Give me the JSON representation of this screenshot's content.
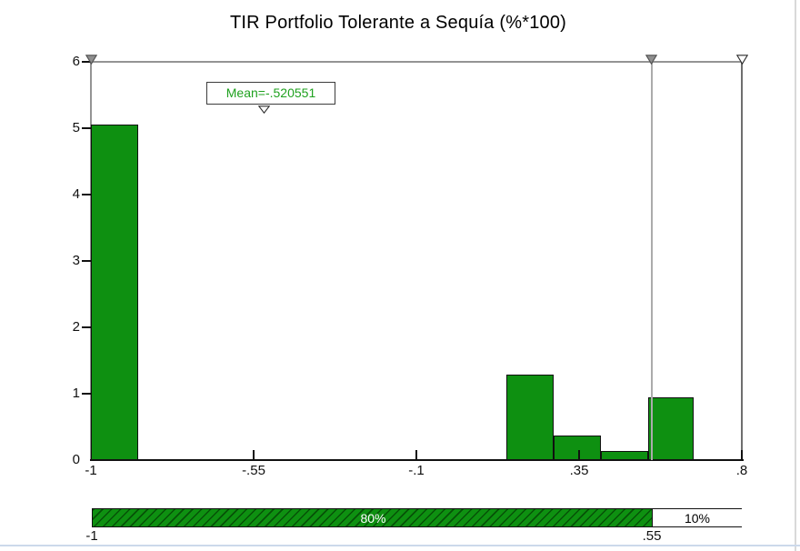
{
  "title": "TIR Portfolio Tolerante a Sequía (%*100)",
  "mean_annotation": {
    "label": "Mean=-.520551",
    "x": -0.520551
  },
  "chart_data": {
    "type": "bar",
    "subtype": "histogram",
    "title": "TIR Portfolio Tolerante a Sequía (%*100)",
    "xlabel": "",
    "ylabel": "",
    "x_axis": {
      "min": -1,
      "max": 0.8,
      "ticks": [
        {
          "value": -1,
          "label": "-1"
        },
        {
          "value": -0.55,
          "label": "-.55"
        },
        {
          "value": -0.1,
          "label": "-.1"
        },
        {
          "value": 0.35,
          "label": ".35"
        },
        {
          "value": 0.8,
          "label": ".8"
        }
      ]
    },
    "y_axis": {
      "min": 0,
      "max": 6,
      "ticks": [
        {
          "value": 0,
          "label": "0"
        },
        {
          "value": 1,
          "label": "1"
        },
        {
          "value": 2,
          "label": "2"
        },
        {
          "value": 3,
          "label": "3"
        },
        {
          "value": 4,
          "label": "4"
        },
        {
          "value": 5,
          "label": "5"
        },
        {
          "value": 6,
          "label": "6"
        }
      ]
    },
    "bins": [
      {
        "x0": -1.0,
        "x1": -0.87,
        "height": 5.06
      },
      {
        "x0": 0.15,
        "x1": 0.28,
        "height": 1.29
      },
      {
        "x0": 0.28,
        "x1": 0.41,
        "height": 0.37
      },
      {
        "x0": 0.41,
        "x1": 0.54,
        "height": 0.14
      },
      {
        "x0": 0.54,
        "x1": 0.665,
        "height": 0.95
      }
    ],
    "mean": -0.520551,
    "delimiter_line_x": 0.55,
    "delimiter_markers": [
      {
        "x": -1,
        "style": "filled",
        "name": "left-delimiter-handle"
      },
      {
        "x": 0.55,
        "style": "filled",
        "name": "right-delimiter-handle"
      },
      {
        "x": 0.8,
        "style": "open",
        "name": "end-delimiter-handle"
      }
    ],
    "legend_position": "none",
    "grid": false,
    "colors": {
      "bar_fill": "#0e9011",
      "bar_border": "#101010",
      "mean_text": "#1fa11f",
      "axis_black": "#111111",
      "boundary_gray": "#949494",
      "right_boundary_gray": "#6e6e6e",
      "delimiter_line_gray": "#ababab"
    }
  },
  "bottom_bar": {
    "segments": [
      {
        "label": "80%",
        "from": -1,
        "to": 0.55,
        "style": "green-hatched",
        "text_color": "#ffffff"
      },
      {
        "label": "10%",
        "from": 0.55,
        "to": 0.8,
        "style": "white",
        "text_color": "#000000"
      }
    ],
    "left_label": "-1",
    "right_label": ".55"
  }
}
